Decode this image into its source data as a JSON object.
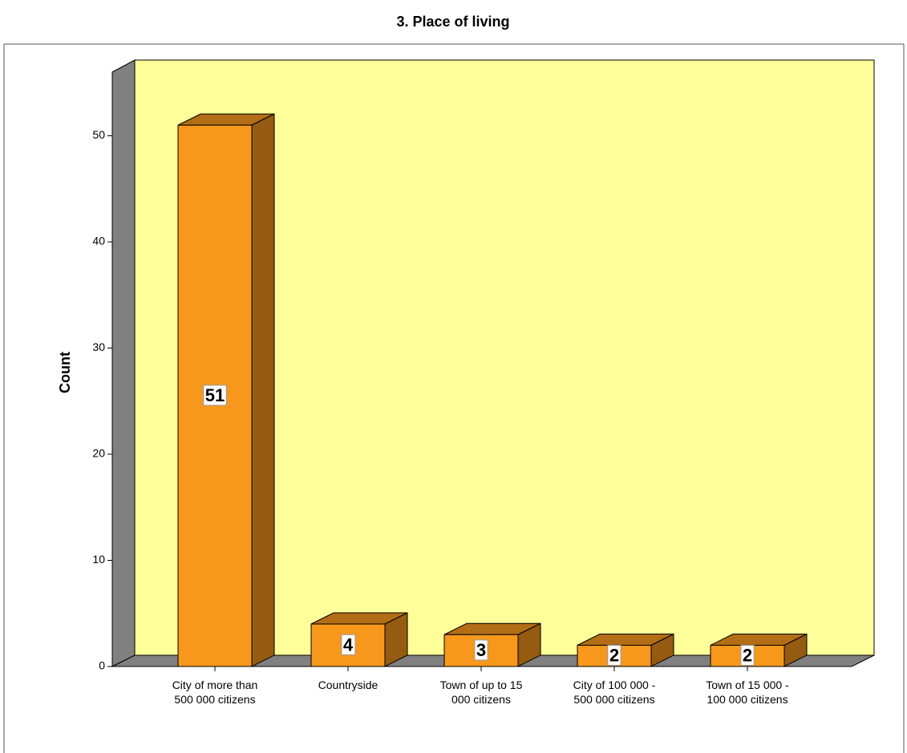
{
  "chart_data": {
    "type": "bar",
    "title": "3. Place of living",
    "y_label": "Count",
    "categories": [
      "City of more than 500 000 citizens",
      "Countryside",
      "Town of up to 15 000 citizens",
      "City of 100 000 - 500 000 citizens",
      "Town of 15 000 - 100 000 citizens"
    ],
    "values": [
      51,
      4,
      3,
      2,
      2
    ],
    "color": "#f7981d",
    "ylim": [
      0,
      56
    ],
    "yticks": [
      0,
      10,
      20,
      30,
      40,
      50
    ]
  }
}
